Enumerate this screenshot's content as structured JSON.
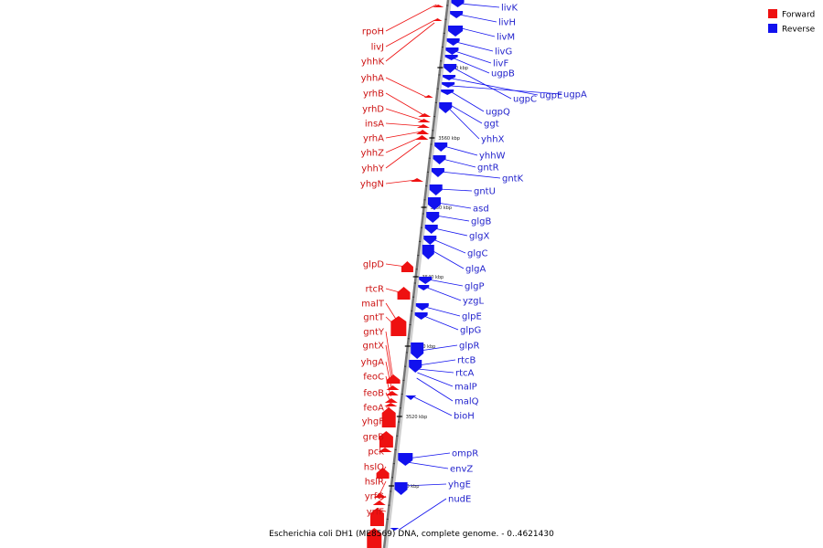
{
  "legend": {
    "forward": {
      "label": "Forward",
      "color": "#ee1111"
    },
    "reverse": {
      "label": "Reverse",
      "color": "#1111ee"
    }
  },
  "caption": "Escherichia coli DH1 (ME8569) DNA, complete genome. - 0..4621430",
  "ticks": [
    "3570 kbp",
    "3560 kbp",
    "3550 kbp",
    "3540 kbp",
    "3530 kbp",
    "3520 kbp",
    "3510 kbp"
  ],
  "forward_genes": [
    "rpoH",
    "livJ",
    "yhhK",
    "yhhA",
    "yrhB",
    "yrhD",
    "insA",
    "yrhA",
    "yhhZ",
    "yhhY",
    "yhgN",
    "glpD",
    "rtcR",
    "malT",
    "gntT",
    "gntY",
    "gntX",
    "yhgA",
    "feoC",
    "feoB",
    "feoA",
    "yhgF",
    "greB",
    "pck",
    "hslO",
    "hslR",
    "yrfG",
    "yrfF"
  ],
  "reverse_genes": [
    "livK",
    "livH",
    "livM",
    "livG",
    "livF",
    "ugpB",
    "ugpC",
    "ugpE",
    "ugpA",
    "ugpQ",
    "ggt",
    "yhhX",
    "yhhW",
    "gntR",
    "gntK",
    "gntU",
    "asd",
    "glgB",
    "glgX",
    "glgC",
    "glgA",
    "glgP",
    "yzgL",
    "glpE",
    "glpG",
    "glpR",
    "rtcB",
    "rtcA",
    "malP",
    "malQ",
    "bioH",
    "ompR",
    "envZ",
    "yhgE",
    "nudE"
  ]
}
